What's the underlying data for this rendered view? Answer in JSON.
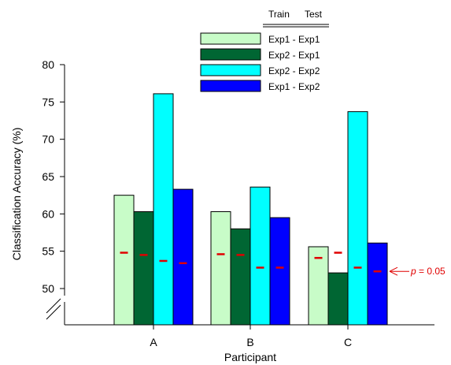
{
  "chart_data": {
    "type": "bar",
    "title": "",
    "xlabel": "Participant",
    "ylabel": "Classification Accuracy (%)",
    "ylim": [
      45,
      80
    ],
    "yticks": [
      50,
      55,
      60,
      65,
      70,
      75,
      80
    ],
    "axis_break": true,
    "grid": false,
    "categories": [
      "A",
      "B",
      "C"
    ],
    "legend": {
      "placement": "top",
      "header": [
        "Train",
        "Test"
      ]
    },
    "series": [
      {
        "name": "Exp1 - Exp1",
        "color": "#c8fcc8",
        "values": [
          62.5,
          60.3,
          55.6
        ],
        "chance": [
          54.8,
          54.6,
          54.1
        ]
      },
      {
        "name": "Exp2 - Exp1",
        "color": "#006633",
        "values": [
          60.3,
          58.0,
          52.1
        ],
        "chance": [
          54.5,
          54.5,
          54.8
        ]
      },
      {
        "name": "Exp2 - Exp2",
        "color": "#00ffff",
        "values": [
          76.1,
          63.6,
          73.7
        ],
        "chance": [
          53.7,
          52.8,
          52.8
        ]
      },
      {
        "name": "Exp1 - Exp2",
        "color": "#0000ff",
        "values": [
          63.3,
          59.5,
          56.1
        ],
        "chance": [
          53.4,
          52.8,
          52.3
        ]
      }
    ],
    "annotation": {
      "italic": "p",
      "text": " = 0.05",
      "color": "#e00000"
    }
  }
}
